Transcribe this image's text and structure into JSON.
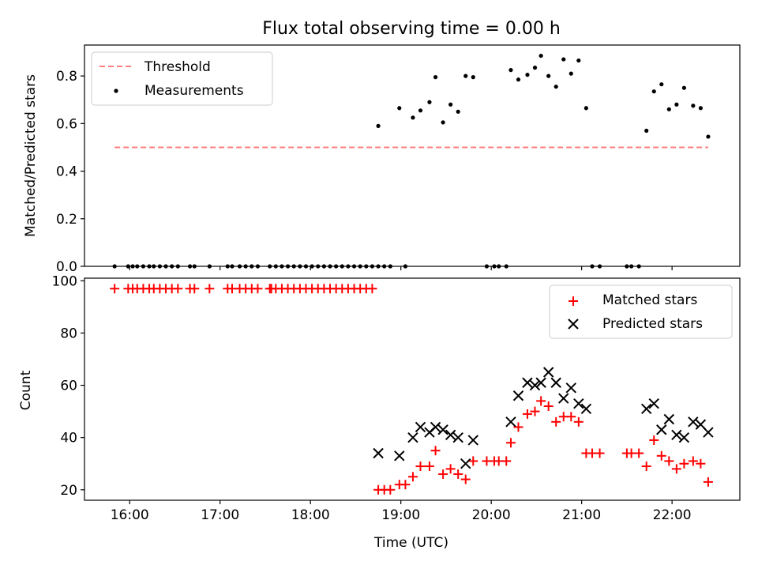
{
  "chart_data": [
    {
      "type": "scatter",
      "title": "Flux total observing time = 0.00 h",
      "xlabel": "",
      "ylabel": "Matched/Predicted stars",
      "xlim": [
        "15:30",
        "22:45"
      ],
      "ylim": [
        0,
        0.93
      ],
      "yticks": [
        0.0,
        0.2,
        0.4,
        0.6,
        0.8
      ],
      "ytick_labels": [
        "0.0",
        "0.2",
        "0.4",
        "0.6",
        "0.8"
      ],
      "legend": {
        "placement": "top-left",
        "entries": [
          "Threshold",
          "Measurements"
        ]
      },
      "threshold": {
        "name": "Threshold",
        "y": 0.5,
        "x": [
          "15:50",
          "22:24"
        ],
        "color": "#ff7f7f",
        "style": "dashed"
      },
      "series": [
        {
          "name": "Measurements",
          "color": "#000000",
          "marker": "dot",
          "points": [
            [
              "15:50",
              0
            ],
            [
              "15:59",
              0
            ],
            [
              "16:02",
              0
            ],
            [
              "16:05",
              0
            ],
            [
              "16:09",
              0
            ],
            [
              "16:13",
              0
            ],
            [
              "16:16",
              0
            ],
            [
              "16:20",
              0
            ],
            [
              "16:24",
              0
            ],
            [
              "16:28",
              0
            ],
            [
              "16:32",
              0
            ],
            [
              "16:40",
              0
            ],
            [
              "16:43",
              0
            ],
            [
              "16:53",
              0
            ],
            [
              "17:05",
              0
            ],
            [
              "17:08",
              0
            ],
            [
              "17:13",
              0
            ],
            [
              "17:17",
              0
            ],
            [
              "17:21",
              0
            ],
            [
              "17:25",
              0
            ],
            [
              "17:33",
              0
            ],
            [
              "17:37",
              0
            ],
            [
              "17:41",
              0
            ],
            [
              "17:45",
              0
            ],
            [
              "17:49",
              0
            ],
            [
              "17:53",
              0
            ],
            [
              "17:57",
              0
            ],
            [
              "18:01",
              0
            ],
            [
              "18:05",
              0
            ],
            [
              "18:09",
              0
            ],
            [
              "18:13",
              0
            ],
            [
              "18:17",
              0
            ],
            [
              "18:21",
              0
            ],
            [
              "18:25",
              0
            ],
            [
              "18:29",
              0
            ],
            [
              "18:33",
              0
            ],
            [
              "18:37",
              0
            ],
            [
              "18:41",
              0
            ],
            [
              "18:45",
              0
            ],
            [
              "18:49",
              0
            ],
            [
              "18:53",
              0
            ],
            [
              "19:03",
              0
            ],
            [
              "18:45",
              0.59
            ],
            [
              "18:59",
              0.665
            ],
            [
              "19:08",
              0.625
            ],
            [
              "19:13",
              0.655
            ],
            [
              "19:19",
              0.69
            ],
            [
              "19:23",
              0.795
            ],
            [
              "19:28",
              0.605
            ],
            [
              "19:33",
              0.68
            ],
            [
              "19:38",
              0.65
            ],
            [
              "19:43",
              0.8
            ],
            [
              "19:48",
              0.795
            ],
            [
              "19:57",
              0
            ],
            [
              "20:02",
              0
            ],
            [
              "20:05",
              0
            ],
            [
              "20:10",
              0
            ],
            [
              "20:13",
              0.825
            ],
            [
              "20:18",
              0.785
            ],
            [
              "20:24",
              0.805
            ],
            [
              "20:29",
              0.835
            ],
            [
              "20:33",
              0.885
            ],
            [
              "20:38",
              0.8
            ],
            [
              "20:43",
              0.755
            ],
            [
              "20:48",
              0.87
            ],
            [
              "20:53",
              0.81
            ],
            [
              "20:58",
              0.865
            ],
            [
              "21:03",
              0.665
            ],
            [
              "21:07",
              0
            ],
            [
              "21:12",
              0
            ],
            [
              "21:30",
              0
            ],
            [
              "21:33",
              0
            ],
            [
              "21:38",
              0
            ],
            [
              "21:43",
              0.57
            ],
            [
              "21:48",
              0.735
            ],
            [
              "21:53",
              0.765
            ],
            [
              "21:58",
              0.66
            ],
            [
              "22:03",
              0.68
            ],
            [
              "22:08",
              0.75
            ],
            [
              "22:14",
              0.675
            ],
            [
              "22:19",
              0.665
            ],
            [
              "22:24",
              0.545
            ]
          ]
        }
      ]
    },
    {
      "type": "scatter",
      "xlabel": "Time (UTC)",
      "ylabel": "Count",
      "xlim": [
        "15:30",
        "22:45"
      ],
      "ylim": [
        16,
        101
      ],
      "xticks": [
        "16:00",
        "17:00",
        "18:00",
        "19:00",
        "20:00",
        "21:00",
        "22:00"
      ],
      "yticks": [
        20,
        40,
        60,
        80,
        100
      ],
      "ytick_labels": [
        "20",
        "40",
        "60",
        "80",
        "100"
      ],
      "legend": {
        "placement": "top-right",
        "entries": [
          "Matched stars",
          "Predicted stars"
        ]
      },
      "series": [
        {
          "name": "Matched stars",
          "color": "#ff0000",
          "marker": "plus",
          "points": [
            [
              "15:50",
              97
            ],
            [
              "15:59",
              97
            ],
            [
              "16:02",
              97
            ],
            [
              "16:05",
              97
            ],
            [
              "16:09",
              97
            ],
            [
              "16:13",
              97
            ],
            [
              "16:16",
              97
            ],
            [
              "16:20",
              97
            ],
            [
              "16:24",
              97
            ],
            [
              "16:28",
              97
            ],
            [
              "16:32",
              97
            ],
            [
              "16:40",
              97
            ],
            [
              "16:43",
              97
            ],
            [
              "16:53",
              97
            ],
            [
              "17:05",
              97
            ],
            [
              "17:08",
              97
            ],
            [
              "17:13",
              97
            ],
            [
              "17:17",
              97
            ],
            [
              "17:21",
              97
            ],
            [
              "17:25",
              97
            ],
            [
              "17:33",
              97
            ],
            [
              "17:34",
              97
            ],
            [
              "17:37",
              97
            ],
            [
              "17:41",
              97
            ],
            [
              "17:45",
              97
            ],
            [
              "17:49",
              97
            ],
            [
              "17:53",
              97
            ],
            [
              "17:57",
              97
            ],
            [
              "18:01",
              97
            ],
            [
              "18:05",
              97
            ],
            [
              "18:09",
              97
            ],
            [
              "18:13",
              97
            ],
            [
              "18:17",
              97
            ],
            [
              "18:21",
              97
            ],
            [
              "18:25",
              97
            ],
            [
              "18:29",
              97
            ],
            [
              "18:33",
              97
            ],
            [
              "18:37",
              97
            ],
            [
              "18:41",
              97
            ],
            [
              "18:45",
              20
            ],
            [
              "18:49",
              20
            ],
            [
              "18:53",
              20
            ],
            [
              "18:59",
              22
            ],
            [
              "19:03",
              22
            ],
            [
              "19:08",
              25
            ],
            [
              "19:13",
              29
            ],
            [
              "19:19",
              29
            ],
            [
              "19:23",
              35
            ],
            [
              "19:28",
              26
            ],
            [
              "19:33",
              28
            ],
            [
              "19:38",
              26
            ],
            [
              "19:43",
              24
            ],
            [
              "19:48",
              31
            ],
            [
              "19:57",
              31
            ],
            [
              "20:02",
              31
            ],
            [
              "20:05",
              31
            ],
            [
              "20:10",
              31
            ],
            [
              "20:13",
              38
            ],
            [
              "20:18",
              44
            ],
            [
              "20:24",
              49
            ],
            [
              "20:29",
              50
            ],
            [
              "20:33",
              54
            ],
            [
              "20:38",
              52
            ],
            [
              "20:43",
              46
            ],
            [
              "20:48",
              48
            ],
            [
              "20:53",
              48
            ],
            [
              "20:58",
              46
            ],
            [
              "21:03",
              34
            ],
            [
              "21:07",
              34
            ],
            [
              "21:12",
              34
            ],
            [
              "21:30",
              34
            ],
            [
              "21:33",
              34
            ],
            [
              "21:38",
              34
            ],
            [
              "21:43",
              29
            ],
            [
              "21:48",
              39
            ],
            [
              "21:53",
              33
            ],
            [
              "21:58",
              31
            ],
            [
              "22:03",
              28
            ],
            [
              "22:08",
              30
            ],
            [
              "22:14",
              31
            ],
            [
              "22:19",
              30
            ],
            [
              "22:24",
              23
            ]
          ]
        },
        {
          "name": "Predicted stars",
          "color": "#000000",
          "marker": "x",
          "points": [
            [
              "18:45",
              34
            ],
            [
              "18:59",
              33
            ],
            [
              "19:08",
              40
            ],
            [
              "19:13",
              44
            ],
            [
              "19:19",
              42
            ],
            [
              "19:23",
              44
            ],
            [
              "19:28",
              43
            ],
            [
              "19:33",
              41
            ],
            [
              "19:38",
              40
            ],
            [
              "19:43",
              30
            ],
            [
              "19:48",
              39
            ],
            [
              "20:13",
              46
            ],
            [
              "20:18",
              56
            ],
            [
              "20:24",
              61
            ],
            [
              "20:29",
              60
            ],
            [
              "20:33",
              61
            ],
            [
              "20:38",
              65
            ],
            [
              "20:43",
              61
            ],
            [
              "20:48",
              55
            ],
            [
              "20:53",
              59
            ],
            [
              "20:58",
              53
            ],
            [
              "21:03",
              51
            ],
            [
              "21:43",
              51
            ],
            [
              "21:48",
              53
            ],
            [
              "21:53",
              43
            ],
            [
              "21:58",
              47
            ],
            [
              "22:03",
              41
            ],
            [
              "22:08",
              40
            ],
            [
              "22:14",
              46
            ],
            [
              "22:19",
              45
            ],
            [
              "22:24",
              42
            ]
          ]
        }
      ]
    }
  ]
}
